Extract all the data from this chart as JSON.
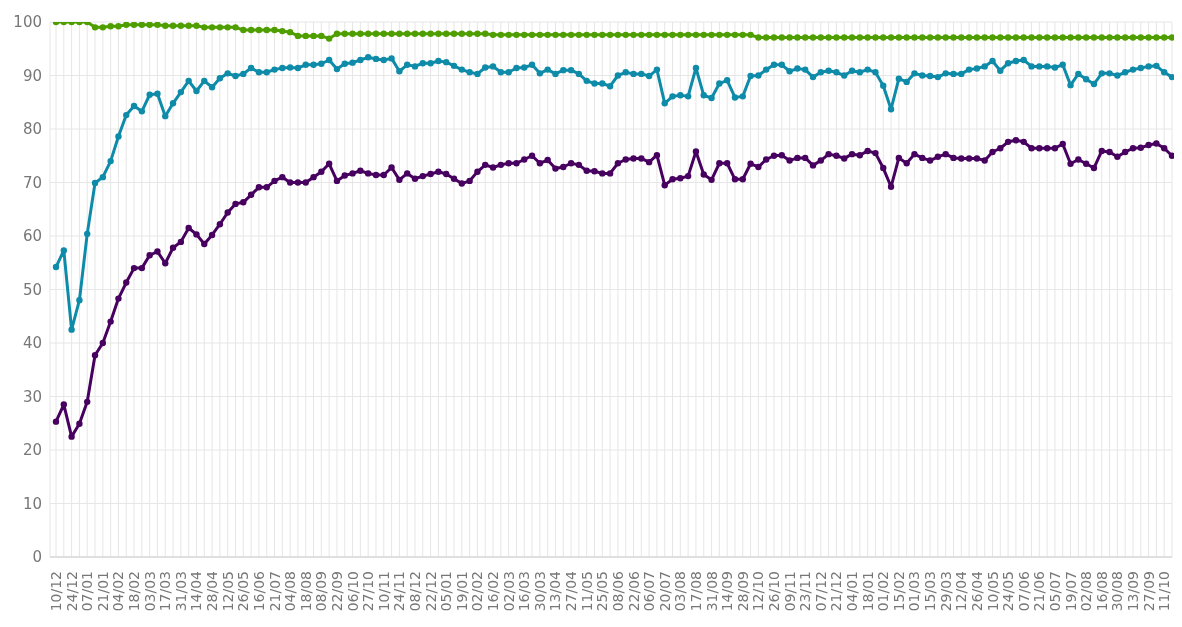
{
  "chart_data": {
    "type": "line",
    "categories": [
      "10/12",
      null,
      "24/12",
      null,
      "07/01",
      null,
      "21/01",
      null,
      "04/02",
      null,
      "18/02",
      null,
      "03/03",
      null,
      "17/03",
      null,
      "31/03",
      null,
      "14/04",
      null,
      "28/04",
      null,
      "12/05",
      null,
      "26/05",
      null,
      "16/06",
      null,
      "21/07",
      null,
      "04/08",
      null,
      "18/08",
      null,
      "08/09",
      null,
      "22/09",
      null,
      "06/10",
      null,
      "27/10",
      null,
      "10/11",
      null,
      "24/11",
      null,
      "08/12",
      null,
      "22/12",
      null,
      "05/01",
      null,
      "19/01",
      null,
      "02/02",
      null,
      "16/02",
      null,
      "02/03",
      null,
      "16/03",
      null,
      "30/03",
      null,
      "13/04",
      null,
      "27/04",
      null,
      "11/05",
      null,
      "25/05",
      null,
      "08/06",
      null,
      "22/06",
      null,
      "06/07",
      null,
      "20/07",
      null,
      "03/08",
      null,
      "17/08",
      null,
      "31/08",
      null,
      "14/09",
      null,
      "28/09",
      null,
      "12/10",
      null,
      "26/10",
      null,
      "09/11",
      null,
      "23/11",
      null,
      "07/12",
      null,
      "21/12",
      null,
      "04/01",
      null,
      "18/01",
      null,
      "01/02",
      null,
      "15/02",
      null,
      "01/03",
      null,
      "15/03",
      null,
      "29/03",
      null,
      "12/04",
      null,
      "26/04",
      null,
      "10/05",
      null,
      "24/05",
      null,
      "07/06",
      null,
      "21/06",
      null,
      "05/07",
      null,
      "19/07",
      null,
      "02/08",
      null,
      "16/08",
      null,
      "30/08",
      null,
      "13/09",
      null,
      "27/09",
      null,
      "11/10",
      null
    ],
    "series": [
      {
        "color": "#4f9e00",
        "values": [
          100,
          100,
          100,
          100,
          100,
          99,
          99,
          99.2,
          99.2,
          99.5,
          99.5,
          99.5,
          99.5,
          99.5,
          99.3,
          99.3,
          99.3,
          99.3,
          99.3,
          99,
          99,
          99,
          99,
          99,
          98.5,
          98.5,
          98.5,
          98.5,
          98.5,
          98.3,
          98.1,
          97.4,
          97.4,
          97.4,
          97.4,
          96.9,
          97.8,
          97.8,
          97.8,
          97.8,
          97.8,
          97.8,
          97.8,
          97.8,
          97.8,
          97.8,
          97.8,
          97.8,
          97.8,
          97.8,
          97.8,
          97.8,
          97.8,
          97.8,
          97.8,
          97.8,
          97.6,
          97.6,
          97.6,
          97.6,
          97.6,
          97.6,
          97.6,
          97.6,
          97.6,
          97.6,
          97.6,
          97.6,
          97.6,
          97.6,
          97.6,
          97.6,
          97.6,
          97.6,
          97.6,
          97.6,
          97.6,
          97.6,
          97.6,
          97.6,
          97.6,
          97.6,
          97.6,
          97.6,
          97.6,
          97.6,
          97.6,
          97.6,
          97.6,
          97.6,
          97.1,
          97.1,
          97.1,
          97.1,
          97.1,
          97.1,
          97.1,
          97.1,
          97.1,
          97.1,
          97.1,
          97.1,
          97.1,
          97.1,
          97.1,
          97.1,
          97.1,
          97.1,
          97.1,
          97.1,
          97.1,
          97.1,
          97.1,
          97.1,
          97.1,
          97.1,
          97.1,
          97.1,
          97.1,
          97.1,
          97.1,
          97.1,
          97.1,
          97.1,
          97.1,
          97.1,
          97.1,
          97.1,
          97.1,
          97.1,
          97.1,
          97.1,
          97.1,
          97.1,
          97.1,
          97.1,
          97.1,
          97.1,
          97.1,
          97.1,
          97.1,
          97.1,
          97.1,
          97.1
        ]
      },
      {
        "color": "#0e8ba8",
        "values": [
          54.2,
          57.3,
          42.5,
          48,
          60.4,
          69.9,
          71,
          74,
          78.6,
          82.6,
          84.3,
          83.3,
          86.4,
          86.6,
          82.4,
          84.8,
          86.9,
          89,
          87.1,
          89,
          87.8,
          89.5,
          90.4,
          89.9,
          90.3,
          91.4,
          90.6,
          90.6,
          91.1,
          91.4,
          91.5,
          91.4,
          92,
          92,
          92.2,
          92.9,
          91.2,
          92.2,
          92.4,
          92.9,
          93.4,
          93.1,
          92.9,
          93.2,
          90.8,
          92,
          91.7,
          92.3,
          92.3,
          92.7,
          92.5,
          91.8,
          91.1,
          90.6,
          90.3,
          91.5,
          91.7,
          90.6,
          90.6,
          91.4,
          91.5,
          92,
          90.4,
          91.1,
          90.3,
          91,
          91,
          90.3,
          89,
          88.5,
          88.5,
          88,
          90,
          90.6,
          90.3,
          90.3,
          89.9,
          91.1,
          84.8,
          86.1,
          86.3,
          86.1,
          91.4,
          86.3,
          85.8,
          88.5,
          89.1,
          85.9,
          86.1,
          89.9,
          90,
          91.1,
          92,
          92,
          90.8,
          91.3,
          91.1,
          89.7,
          90.6,
          90.9,
          90.6,
          90,
          90.9,
          90.6,
          91.1,
          90.6,
          88.1,
          83.7,
          89.4,
          88.8,
          90.4,
          90,
          89.9,
          89.7,
          90.4,
          90.3,
          90.3,
          91.1,
          91.3,
          91.7,
          92.7,
          90.9,
          92.3,
          92.7,
          92.9,
          91.7,
          91.7,
          91.7,
          91.5,
          92,
          88.2,
          90.3,
          89.3,
          88.4,
          90.4,
          90.4,
          90,
          90.6,
          91.1,
          91.4,
          91.7,
          91.8,
          90.6,
          89.7
        ]
      },
      {
        "color": "#47005f",
        "values": [
          25.3,
          28.5,
          22.5,
          24.9,
          29,
          37.7,
          40,
          44,
          48.3,
          51.3,
          54,
          54,
          56.4,
          57.1,
          54.9,
          57.8,
          58.9,
          61.5,
          60.3,
          58.5,
          60.2,
          62.2,
          64.4,
          66,
          66.3,
          67.7,
          69.1,
          69.1,
          70.3,
          71,
          70,
          70,
          70,
          71,
          72,
          73.5,
          70.3,
          71.3,
          71.7,
          72.2,
          71.7,
          71.4,
          71.4,
          72.8,
          70.5,
          71.7,
          70.7,
          71.2,
          71.6,
          72,
          71.6,
          70.7,
          69.8,
          70.3,
          72,
          73.3,
          72.8,
          73.3,
          73.6,
          73.6,
          74.3,
          75,
          73.6,
          74.2,
          72.6,
          72.9,
          73.6,
          73.3,
          72.2,
          72.1,
          71.7,
          71.7,
          73.6,
          74.3,
          74.5,
          74.5,
          73.8,
          75.1,
          69.5,
          70.6,
          70.8,
          71.2,
          75.8,
          71.5,
          70.5,
          73.6,
          73.6,
          70.6,
          70.6,
          73.5,
          72.9,
          74.3,
          75,
          75.1,
          74.1,
          74.6,
          74.6,
          73.2,
          74.1,
          75.3,
          75,
          74.5,
          75.3,
          75.1,
          75.9,
          75.5,
          72.7,
          69.2,
          74.6,
          73.6,
          75.3,
          74.6,
          74.1,
          74.8,
          75.3,
          74.6,
          74.5,
          74.5,
          74.5,
          74.1,
          75.7,
          76.4,
          77.6,
          77.9,
          77.6,
          76.4,
          76.4,
          76.4,
          76.4,
          77.2,
          73.5,
          74.3,
          73.5,
          72.7,
          75.9,
          75.7,
          74.8,
          75.7,
          76.4,
          76.5,
          77,
          77.3,
          76.4,
          75
        ]
      }
    ],
    "ylim": [
      0,
      100
    ],
    "yticks": [
      0,
      10,
      20,
      30,
      40,
      50,
      60,
      70,
      80,
      90,
      100
    ],
    "grid": true,
    "marker": "circle",
    "line_style": "solid"
  }
}
